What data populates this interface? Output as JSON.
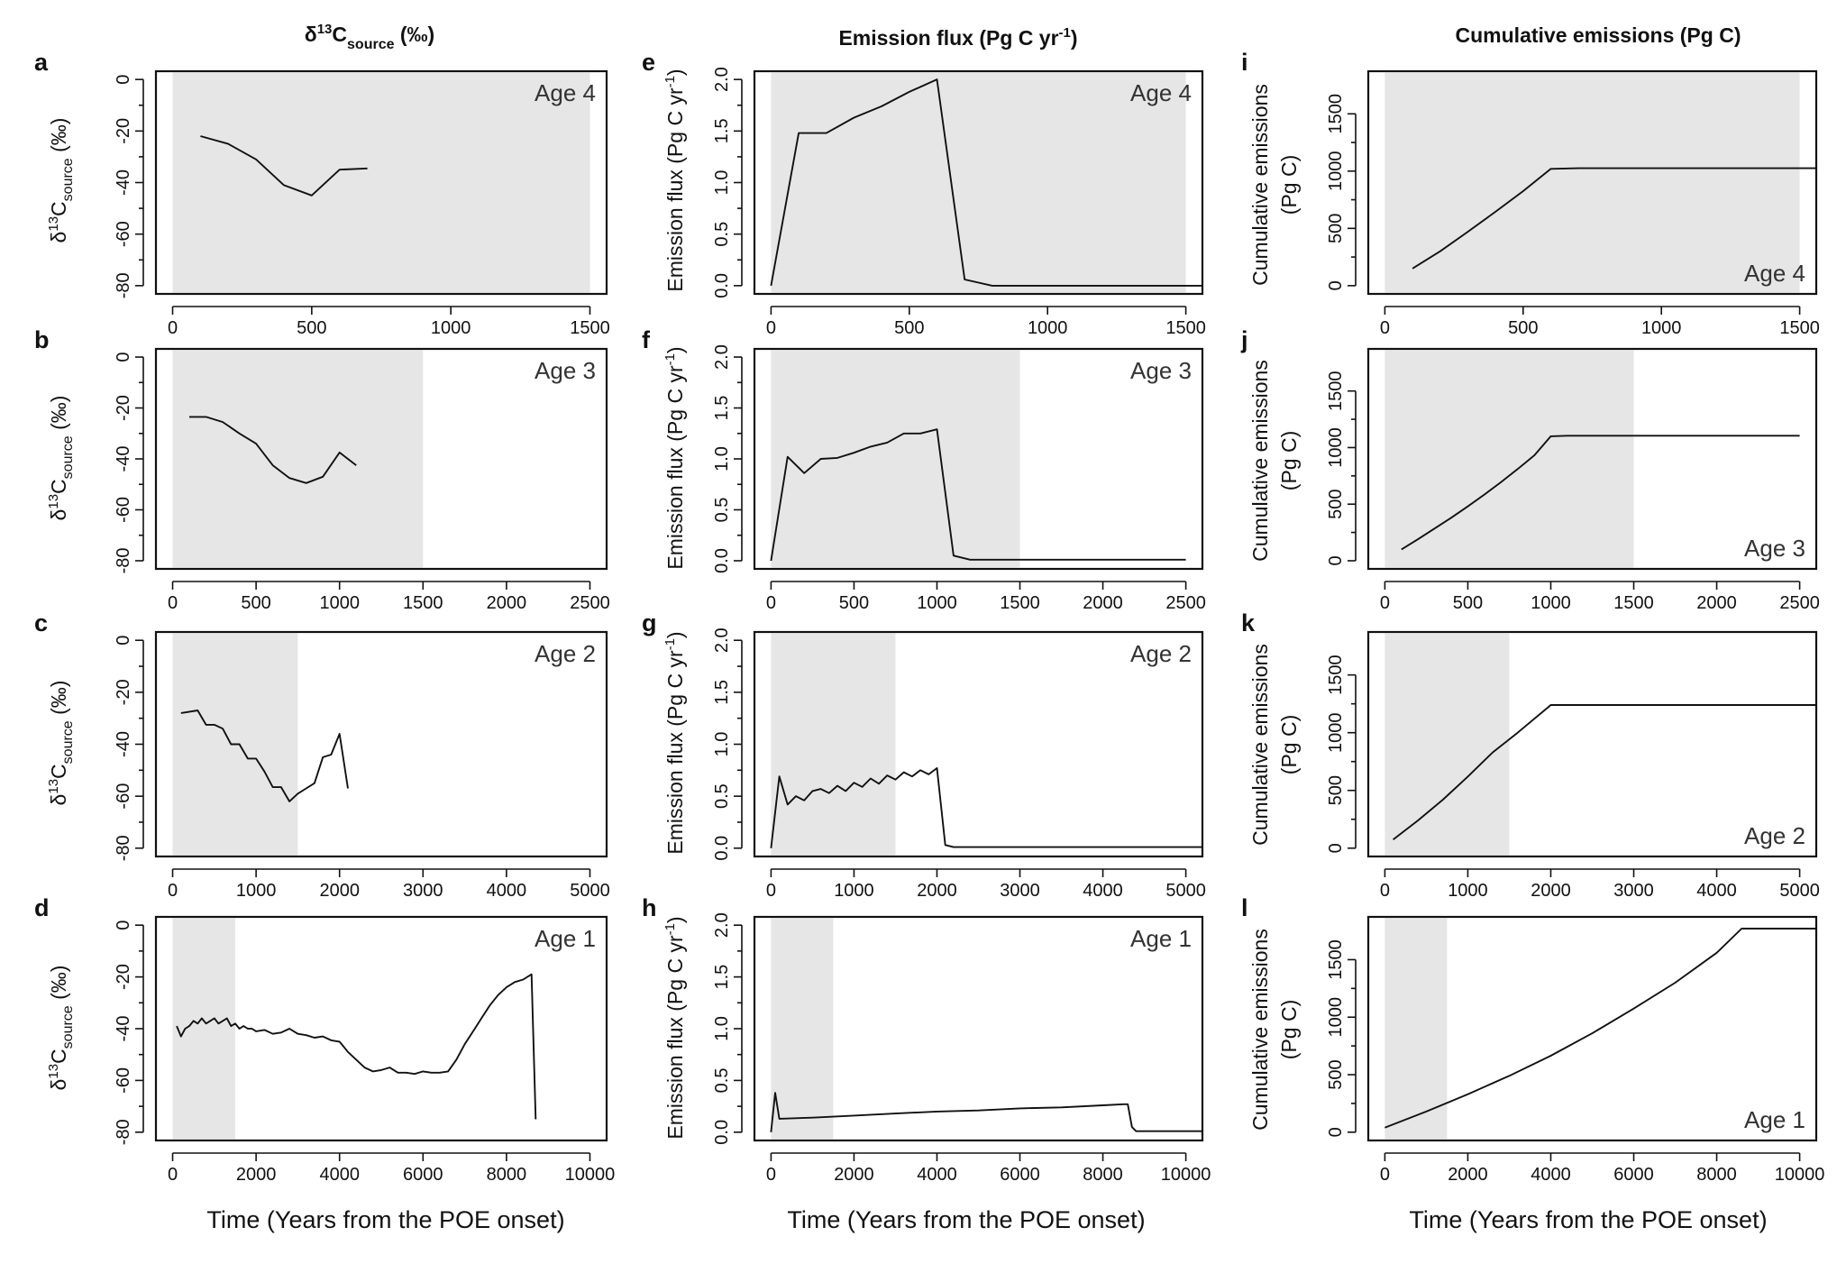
{
  "column_titles": {
    "col1": {
      "main": "δ",
      "sup": "13",
      "c": "C",
      "sub": "source",
      "unit": " (‰)"
    },
    "col2": {
      "main": "Emission flux (Pg C yr",
      "sup": "-1",
      "close": ")"
    },
    "col3": "Cumulative emissions (Pg C)"
  },
  "x_axis_title": "Time (Years from the POE onset)",
  "y_axis_labels": {
    "delta": {
      "main": "δ",
      "sup": "13",
      "c": "C",
      "sub": "source",
      "unit": " (‰)"
    },
    "flux": {
      "main": "Emission flux (Pg C yr",
      "sup": "-1",
      "close": ")"
    },
    "cum_line1": "Cumulative emissions",
    "cum_line2": "(Pg C)"
  },
  "chart_data": [
    {
      "id": "a",
      "type": "line",
      "age": "Age 4",
      "variable": "delta13C_source (‰)",
      "xlim": [
        0,
        1500
      ],
      "xticks": [
        0,
        500,
        1000,
        1500
      ],
      "ylim": [
        -80,
        0
      ],
      "yticks": [
        -80,
        -60,
        -40,
        -20,
        0
      ],
      "shade": [
        0,
        1500
      ],
      "series": [
        {
          "name": "δ13C source",
          "x": [
            100,
            200,
            300,
            400,
            500,
            600,
            700
          ],
          "y": [
            -22,
            -25,
            -31,
            -41,
            -45,
            -35,
            -34.5
          ]
        }
      ]
    },
    {
      "id": "b",
      "type": "line",
      "age": "Age 3",
      "variable": "delta13C_source (‰)",
      "xlim": [
        0,
        2500
      ],
      "xticks": [
        0,
        500,
        1000,
        1500,
        2000,
        2500
      ],
      "ylim": [
        -80,
        0
      ],
      "yticks": [
        -80,
        -60,
        -40,
        -20,
        0
      ],
      "shade": [
        0,
        1500
      ],
      "series": [
        {
          "name": "δ13C source",
          "x": [
            100,
            200,
            300,
            400,
            500,
            600,
            700,
            800,
            900,
            1000,
            1100
          ],
          "y": [
            -23.5,
            -23.5,
            -25.5,
            -30,
            -34,
            -42.5,
            -47.5,
            -49.5,
            -47,
            -37.5,
            -42.5
          ]
        }
      ]
    },
    {
      "id": "c",
      "type": "line",
      "age": "Age 2",
      "variable": "delta13C_source (‰)",
      "xlim": [
        0,
        5000
      ],
      "xticks": [
        0,
        1000,
        2000,
        3000,
        4000,
        5000
      ],
      "ylim": [
        -80,
        0
      ],
      "yticks": [
        -80,
        -60,
        -40,
        -20,
        0
      ],
      "shade": [
        0,
        1500
      ],
      "series": [
        {
          "name": "δ13C source",
          "x": [
            100,
            300,
            400,
            500,
            600,
            700,
            800,
            900,
            1000,
            1100,
            1200,
            1300,
            1400,
            1500,
            1600,
            1700,
            1800,
            1900,
            2000,
            2100
          ],
          "y": [
            -28,
            -27,
            -32.5,
            -32.5,
            -34,
            -40,
            -40,
            -45.5,
            -45.5,
            -50.5,
            -56.5,
            -56.5,
            -62,
            -59,
            -57,
            -55,
            -45,
            -44,
            -36,
            -57
          ]
        }
      ]
    },
    {
      "id": "d",
      "type": "line",
      "age": "Age 1",
      "variable": "delta13C_source (‰)",
      "xlim": [
        0,
        10000
      ],
      "xticks": [
        0,
        2000,
        4000,
        6000,
        8000,
        10000
      ],
      "ylim": [
        -80,
        0
      ],
      "yticks": [
        -80,
        -60,
        -40,
        -20,
        0
      ],
      "shade": [
        0,
        1500
      ],
      "series": [
        {
          "name": "δ13C source",
          "x": [
            100,
            200,
            300,
            400,
            500,
            600,
            700,
            800,
            900,
            1000,
            1100,
            1200,
            1300,
            1400,
            1500,
            1600,
            1700,
            1800,
            1900,
            2000,
            2200,
            2400,
            2600,
            2800,
            3000,
            3200,
            3400,
            3600,
            3800,
            4000,
            4200,
            4400,
            4600,
            4800,
            5000,
            5200,
            5400,
            5600,
            5800,
            6000,
            6200,
            6400,
            6600,
            6800,
            7000,
            7200,
            7400,
            7600,
            7800,
            8000,
            8200,
            8400,
            8600,
            8700
          ],
          "y": [
            -39,
            -43,
            -40,
            -39,
            -37,
            -38,
            -36,
            -38,
            -37,
            -36,
            -38,
            -37,
            -36,
            -39,
            -38,
            -40,
            -39,
            -40,
            -40,
            -41,
            -40.5,
            -42,
            -41.5,
            -40,
            -42,
            -42.5,
            -43.5,
            -43,
            -44.5,
            -45,
            -49,
            -52,
            -55,
            -56.5,
            -56,
            -55,
            -57,
            -57,
            -57.5,
            -56.5,
            -57,
            -57,
            -56.5,
            -52,
            -46,
            -41,
            -36,
            -31,
            -27,
            -24,
            -22,
            -21,
            -19,
            -75
          ]
        }
      ]
    },
    {
      "id": "e",
      "type": "line",
      "age": "Age 4",
      "variable": "Emission flux (Pg C yr-1)",
      "xlim": [
        0,
        1500
      ],
      "xticks": [
        0,
        500,
        1000,
        1500
      ],
      "ylim": [
        0,
        2
      ],
      "yticks": [
        0,
        0.5,
        1,
        1.5,
        2
      ],
      "ytick_labels": [
        "0.0",
        "0.5",
        "1.0",
        "1.5",
        "2.0"
      ],
      "shade": [
        0,
        1500
      ],
      "series": [
        {
          "name": "Emission flux",
          "x": [
            0,
            100,
            200,
            300,
            400,
            500,
            600,
            700,
            800,
            900,
            1000,
            1100,
            1200,
            1300,
            1400,
            1500,
            1570
          ],
          "y": [
            0,
            1.48,
            1.48,
            1.63,
            1.74,
            1.88,
            2.0,
            0.06,
            0.0,
            0.0,
            0.0,
            0.0,
            0.0,
            0.0,
            0.0,
            0.0,
            0.0
          ]
        }
      ]
    },
    {
      "id": "f",
      "type": "line",
      "age": "Age 3",
      "variable": "Emission flux (Pg C yr-1)",
      "xlim": [
        0,
        2500
      ],
      "xticks": [
        0,
        500,
        1000,
        1500,
        2000,
        2500
      ],
      "ylim": [
        0,
        2
      ],
      "yticks": [
        0,
        0.5,
        1,
        1.5,
        2
      ],
      "ytick_labels": [
        "0.0",
        "0.5",
        "1.0",
        "1.5",
        "2.0"
      ],
      "shade": [
        0,
        1500
      ],
      "series": [
        {
          "name": "Emission flux",
          "x": [
            0,
            100,
            200,
            300,
            400,
            500,
            600,
            700,
            800,
            900,
            1000,
            1100,
            1200,
            1300,
            1500,
            2000,
            2500
          ],
          "y": [
            0,
            1.02,
            0.86,
            1.0,
            1.01,
            1.06,
            1.12,
            1.16,
            1.25,
            1.25,
            1.29,
            0.05,
            0.01,
            0.01,
            0.01,
            0.01,
            0.01
          ]
        }
      ]
    },
    {
      "id": "g",
      "type": "line",
      "age": "Age 2",
      "variable": "Emission flux (Pg C yr-1)",
      "xlim": [
        0,
        5000
      ],
      "xticks": [
        0,
        1000,
        2000,
        3000,
        4000,
        5000
      ],
      "ylim": [
        0,
        2
      ],
      "yticks": [
        0,
        0.5,
        1,
        1.5,
        2
      ],
      "ytick_labels": [
        "0.0",
        "0.5",
        "1.0",
        "1.5",
        "2.0"
      ],
      "shade": [
        0,
        1500
      ],
      "series": [
        {
          "name": "Emission flux",
          "x": [
            0,
            100,
            200,
            300,
            400,
            500,
            600,
            700,
            800,
            900,
            1000,
            1100,
            1200,
            1300,
            1400,
            1500,
            1600,
            1700,
            1800,
            1900,
            2000,
            2100,
            2200,
            3000,
            4000,
            5000,
            5200
          ],
          "y": [
            0,
            0.69,
            0.42,
            0.5,
            0.46,
            0.55,
            0.57,
            0.53,
            0.6,
            0.55,
            0.63,
            0.59,
            0.67,
            0.62,
            0.7,
            0.66,
            0.73,
            0.69,
            0.75,
            0.71,
            0.77,
            0.03,
            0.01,
            0.01,
            0.01,
            0.01,
            0.01
          ]
        }
      ]
    },
    {
      "id": "h",
      "type": "line",
      "age": "Age 1",
      "variable": "Emission flux (Pg C yr-1)",
      "xlim": [
        0,
        10000
      ],
      "xticks": [
        0,
        2000,
        4000,
        6000,
        8000,
        10000
      ],
      "ylim": [
        0,
        2
      ],
      "yticks": [
        0,
        0.5,
        1,
        1.5,
        2
      ],
      "ytick_labels": [
        "0.0",
        "0.5",
        "1.0",
        "1.5",
        "2.0"
      ],
      "shade": [
        0,
        1500
      ],
      "series": [
        {
          "name": "Emission flux",
          "x": [
            0,
            100,
            200,
            1000,
            2000,
            3000,
            4000,
            5000,
            6000,
            7000,
            8000,
            8500,
            8600,
            8700,
            8800,
            9000,
            10000,
            10400
          ],
          "y": [
            0,
            0.38,
            0.13,
            0.14,
            0.16,
            0.18,
            0.2,
            0.21,
            0.23,
            0.24,
            0.26,
            0.27,
            0.27,
            0.05,
            0.01,
            0.01,
            0.01,
            0.01
          ]
        }
      ]
    },
    {
      "id": "i",
      "type": "line",
      "age": "Age 4",
      "variable": "Cumulative emissions (Pg C)",
      "xlim": [
        0,
        1500
      ],
      "xticks": [
        0,
        500,
        1000,
        1500
      ],
      "ylim": [
        0,
        1800
      ],
      "yticks": [
        0,
        500,
        1000,
        1500
      ],
      "shade": [
        0,
        1500
      ],
      "series": [
        {
          "name": "Cumulative emissions",
          "x": [
            100,
            200,
            300,
            400,
            500,
            600,
            700,
            1000,
            1500,
            1570
          ],
          "y": [
            150,
            300,
            470,
            645,
            825,
            1020,
            1025,
            1025,
            1025,
            1025
          ]
        }
      ]
    },
    {
      "id": "j",
      "type": "line",
      "age": "Age 3",
      "variable": "Cumulative emissions (Pg C)",
      "xlim": [
        0,
        2500
      ],
      "xticks": [
        0,
        500,
        1000,
        1500,
        2000,
        2500
      ],
      "ylim": [
        0,
        1800
      ],
      "yticks": [
        0,
        500,
        1000,
        1500
      ],
      "shade": [
        0,
        1500
      ],
      "series": [
        {
          "name": "Cumulative emissions",
          "x": [
            100,
            200,
            300,
            400,
            500,
            600,
            700,
            800,
            900,
            1000,
            1100,
            2000,
            2500
          ],
          "y": [
            100,
            190,
            285,
            380,
            480,
            585,
            695,
            810,
            930,
            1100,
            1105,
            1105,
            1105
          ]
        }
      ]
    },
    {
      "id": "k",
      "type": "line",
      "age": "Age 2",
      "variable": "Cumulative emissions (Pg C)",
      "xlim": [
        0,
        5000
      ],
      "xticks": [
        0,
        1000,
        2000,
        3000,
        4000,
        5000
      ],
      "ylim": [
        0,
        1800
      ],
      "yticks": [
        0,
        500,
        1000,
        1500
      ],
      "shade": [
        0,
        1500
      ],
      "series": [
        {
          "name": "Cumulative emissions",
          "x": [
            100,
            400,
            700,
            1000,
            1300,
            1600,
            2000,
            3000,
            4000,
            5200
          ],
          "y": [
            75,
            240,
            420,
            620,
            830,
            1000,
            1240,
            1240,
            1240,
            1240
          ]
        }
      ]
    },
    {
      "id": "l",
      "type": "line",
      "age": "Age 1",
      "variable": "Cumulative emissions (Pg C)",
      "xlim": [
        0,
        10000
      ],
      "xticks": [
        0,
        2000,
        4000,
        6000,
        8000,
        10000
      ],
      "ylim": [
        0,
        1800
      ],
      "yticks": [
        0,
        500,
        1000,
        1500
      ],
      "shade": [
        0,
        1500
      ],
      "series": [
        {
          "name": "Cumulative emissions",
          "x": [
            0,
            1000,
            2000,
            3000,
            4000,
            5000,
            6000,
            7000,
            8000,
            8600,
            10400
          ],
          "y": [
            40,
            180,
            330,
            490,
            665,
            860,
            1075,
            1300,
            1560,
            1770,
            1770
          ]
        }
      ]
    }
  ]
}
